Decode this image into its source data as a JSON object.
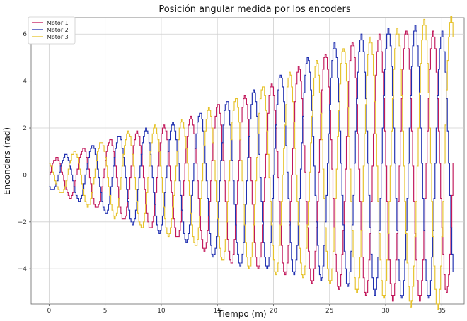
{
  "chart_data": {
    "type": "line",
    "title": "Posición angular medida por los encoders",
    "xlabel": "Tiempo (m)",
    "ylabel": "Enconders (rad)",
    "xlim": [
      -1.6,
      37.0
    ],
    "ylim": [
      -5.5,
      6.7
    ],
    "xticks": [
      0,
      5,
      10,
      15,
      20,
      25,
      30,
      35
    ],
    "yticks": [
      -4,
      -2,
      0,
      2,
      4,
      6
    ],
    "grid": true,
    "legend_position": "top-left",
    "step_size": 0.1,
    "series": [
      {
        "name": "Motor 1",
        "color": "#c2185b",
        "x_start": 0,
        "x_end": 36.0,
        "period": 2.4,
        "phase": 0,
        "amplitude": [
          [
            0,
            0.6
          ],
          [
            3.6,
            1.25
          ],
          [
            7.2,
            1.9
          ],
          [
            11.7,
            2.5
          ],
          [
            15.4,
            3.4
          ],
          [
            19.5,
            3.95
          ],
          [
            23.6,
            4.8
          ],
          [
            27.3,
            5.4
          ],
          [
            30.5,
            5.75
          ],
          [
            33.5,
            5.75
          ],
          [
            36.0,
            5.4
          ]
        ],
        "offset": [
          [
            0,
            0
          ],
          [
            17.0,
            -0.3
          ],
          [
            25.0,
            0.25
          ],
          [
            36.0,
            0.5
          ]
        ]
      },
      {
        "name": "Motor 2",
        "color": "#1f2fb0",
        "x_start": 0,
        "x_end": 36.0,
        "period": 2.4,
        "phase": 4.18879,
        "amplitude": [
          [
            0,
            0.6
          ],
          [
            3.6,
            1.25
          ],
          [
            7.2,
            1.95
          ],
          [
            11.7,
            2.5
          ],
          [
            15.4,
            3.4
          ],
          [
            19.5,
            3.95
          ],
          [
            23.6,
            4.8
          ],
          [
            27.3,
            5.4
          ],
          [
            30.5,
            5.75
          ],
          [
            33.5,
            5.85
          ],
          [
            36.0,
            5.4
          ]
        ],
        "offset": [
          [
            0,
            0
          ],
          [
            17.0,
            -0.3
          ],
          [
            25.0,
            0.5
          ],
          [
            36.0,
            0.5
          ]
        ]
      },
      {
        "name": "Motor 3",
        "color": "#e6c229",
        "x_start": 0,
        "x_end": 36.0,
        "period": 2.4,
        "phase": 2.0944,
        "amplitude": [
          [
            0,
            0.6
          ],
          [
            3.6,
            1.3
          ],
          [
            7.2,
            2.0
          ],
          [
            11.7,
            2.5
          ],
          [
            15.4,
            3.4
          ],
          [
            19.5,
            4.05
          ],
          [
            23.6,
            4.65
          ],
          [
            27.3,
            5.35
          ],
          [
            30.5,
            5.75
          ],
          [
            33.5,
            6.15
          ],
          [
            36.0,
            6.2
          ]
        ],
        "offset": [
          [
            0,
            0
          ],
          [
            17.0,
            -0.3
          ],
          [
            25.0,
            0.25
          ],
          [
            36.0,
            0.5
          ]
        ]
      }
    ]
  }
}
